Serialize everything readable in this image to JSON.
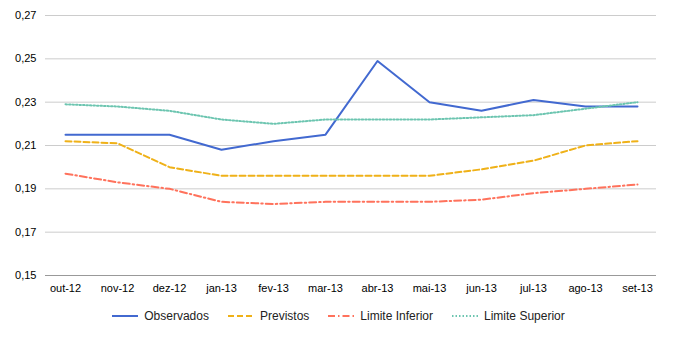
{
  "chart_data": {
    "type": "line",
    "categories": [
      "out-12",
      "nov-12",
      "dez-12",
      "jan-13",
      "fev-13",
      "mar-13",
      "abr-13",
      "mai-13",
      "jun-13",
      "jul-13",
      "ago-13",
      "set-13"
    ],
    "series": [
      {
        "name": "Observados",
        "line_style": "solid",
        "values": [
          0.215,
          0.215,
          0.215,
          0.208,
          0.212,
          0.215,
          0.249,
          0.23,
          0.226,
          0.231,
          0.228,
          0.228
        ]
      },
      {
        "name": "Previstos",
        "line_style": "dashed",
        "values": [
          0.212,
          0.211,
          0.2,
          0.196,
          0.196,
          0.196,
          0.196,
          0.196,
          0.199,
          0.203,
          0.21,
          0.212
        ]
      },
      {
        "name": "Limite Inferior",
        "line_style": "dashdot",
        "values": [
          0.197,
          0.193,
          0.19,
          0.184,
          0.183,
          0.184,
          0.184,
          0.184,
          0.185,
          0.188,
          0.19,
          0.192
        ]
      },
      {
        "name": "Limite Superior",
        "line_style": "dotted",
        "values": [
          0.229,
          0.228,
          0.226,
          0.222,
          0.22,
          0.222,
          0.222,
          0.222,
          0.223,
          0.224,
          0.227,
          0.23
        ]
      }
    ],
    "ylim": [
      0.15,
      0.27
    ],
    "yticks": [
      {
        "value": 0.15,
        "label": "0,15"
      },
      {
        "value": 0.17,
        "label": "0,17"
      },
      {
        "value": 0.19,
        "label": "0,19"
      },
      {
        "value": 0.21,
        "label": "0,21"
      },
      {
        "value": 0.23,
        "label": "0,23"
      },
      {
        "value": 0.25,
        "label": "0,25"
      },
      {
        "value": 0.27,
        "label": "0,27"
      }
    ],
    "grid": "y",
    "legend": "bottom"
  }
}
